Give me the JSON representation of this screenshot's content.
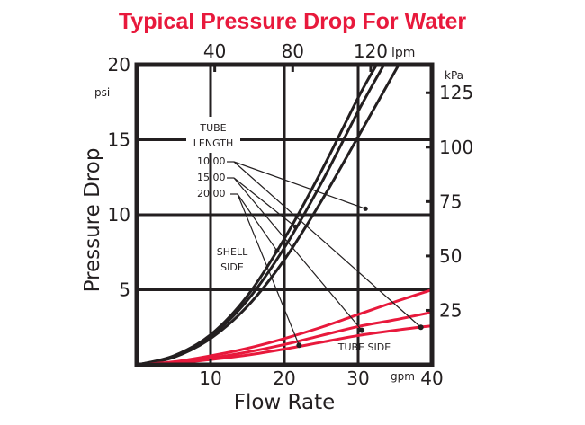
{
  "chart_data": {
    "type": "line",
    "title": "Typical Pressure Drop For Water",
    "xlabel": "Flow Rate",
    "ylabel": "Pressure Drop",
    "x_unit": "gpm",
    "y_unit": "psi",
    "x2_unit": "lpm",
    "y2_unit": "kPa",
    "xlim": [
      0,
      40
    ],
    "ylim": [
      0,
      20
    ],
    "grid": true,
    "x_ticks": [
      "10",
      "20",
      "30",
      "40"
    ],
    "x_tick_values": [
      10,
      20,
      30,
      40
    ],
    "y_ticks": [
      "5",
      "10",
      "15",
      "20"
    ],
    "y_tick_values": [
      5,
      10,
      15,
      20
    ],
    "x2_ticks": [
      "40",
      "80",
      "120"
    ],
    "x2_tick_values": [
      40,
      80,
      120
    ],
    "y2_ticks": [
      "25",
      "50",
      "75",
      "100",
      "125"
    ],
    "y2_tick_values": [
      25,
      50,
      75,
      100,
      125
    ],
    "annotations": {
      "legend_title_1": "TUBE",
      "legend_title_2": "LENGTH",
      "shell_side_1": "SHELL",
      "shell_side_2": "SIDE",
      "tube_side": "TUBE SIDE"
    },
    "series": [
      {
        "name": "10.00",
        "group": "shell",
        "color": "#231f20",
        "x": [
          0,
          5,
          10,
          15,
          20,
          25,
          30,
          32.5
        ],
        "y": [
          0,
          0.6,
          2.0,
          4.6,
          8.4,
          12.9,
          17.8,
          20
        ]
      },
      {
        "name": "15.00",
        "group": "shell",
        "color": "#231f20",
        "x": [
          0,
          5,
          10,
          15,
          20,
          25,
          30,
          33.5
        ],
        "y": [
          0,
          0.55,
          1.9,
          4.3,
          7.8,
          12.1,
          16.9,
          20
        ]
      },
      {
        "name": "20.00",
        "group": "shell",
        "color": "#231f20",
        "x": [
          0,
          5,
          10,
          15,
          20,
          25,
          30,
          35.5
        ],
        "y": [
          0,
          0.5,
          1.75,
          3.9,
          7.0,
          10.9,
          15.2,
          20
        ]
      },
      {
        "name": "10.00",
        "group": "tube",
        "color": "#e8193c",
        "x": [
          0,
          5,
          10,
          15,
          20,
          25,
          30,
          35,
          40
        ],
        "y": [
          0,
          0.2,
          0.6,
          1.1,
          1.75,
          2.5,
          3.35,
          4.2,
          5.0
        ]
      },
      {
        "name": "15.00",
        "group": "tube",
        "color": "#e8193c",
        "x": [
          0,
          5,
          10,
          15,
          20,
          25,
          30,
          35,
          40
        ],
        "y": [
          0,
          0.15,
          0.45,
          0.85,
          1.35,
          1.95,
          2.55,
          3.0,
          3.5
        ]
      },
      {
        "name": "20.00",
        "group": "tube",
        "color": "#e8193c",
        "x": [
          0,
          5,
          10,
          15,
          20,
          25,
          30,
          35,
          40
        ],
        "y": [
          0,
          0.1,
          0.35,
          0.65,
          1.05,
          1.5,
          1.95,
          2.3,
          2.6
        ]
      }
    ],
    "leaders": [
      {
        "label": "10.00",
        "shell_point": [
          31,
          10.4
        ],
        "tube_point": [
          38.5,
          2.5
        ]
      },
      {
        "label": "15.00",
        "shell_point": [
          21.5,
          9.2
        ],
        "tube_point": [
          30.5,
          2.3
        ]
      },
      {
        "label": "20.00",
        "shell_point": [
          19,
          7.6
        ],
        "tube_point": [
          22,
          1.3
        ]
      }
    ]
  },
  "colors": {
    "title": "#e8193c",
    "ink": "#231f20",
    "tube": "#e8193c"
  }
}
